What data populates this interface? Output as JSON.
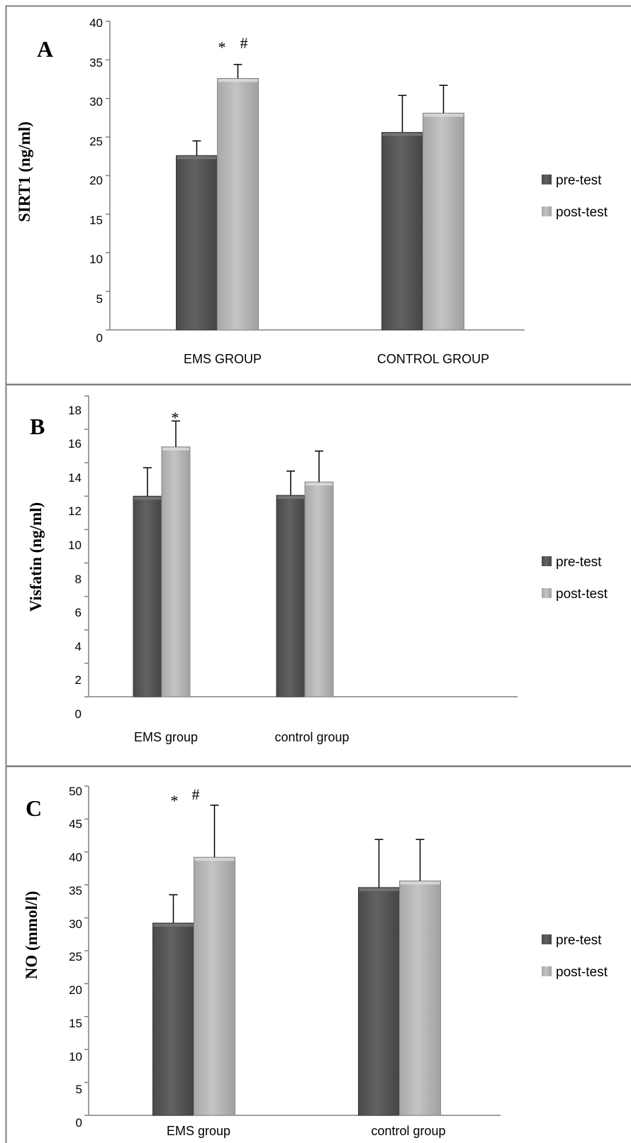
{
  "legend": {
    "series": [
      "pre-test",
      "post-test"
    ]
  },
  "colors": {
    "pre": "#5a5a5a",
    "post": "#b5b5b5",
    "axis": "#808080",
    "border": "#7f7f7f"
  },
  "chart_data": [
    {
      "type": "bar",
      "panel": "A",
      "ylabel": "SIRT1 (ng/ml)",
      "categories": [
        "EMS GROUP",
        "CONTROL GROUP"
      ],
      "ylim": [
        0,
        40
      ],
      "yticks": [
        "0",
        "5",
        "10",
        "15",
        "20",
        "25",
        "30",
        "35",
        "40"
      ],
      "series": [
        {
          "name": "pre-test",
          "values": [
            22.6,
            25.6
          ],
          "errors": [
            1.9,
            4.8
          ]
        },
        {
          "name": "post-test",
          "values": [
            32.6,
            28.1
          ],
          "errors": [
            1.8,
            3.6
          ]
        }
      ],
      "annotations": [
        "*",
        "#"
      ],
      "legend_position": "right",
      "grid": false
    },
    {
      "type": "bar",
      "panel": "B",
      "ylabel": "Visfatin (ng/ml)",
      "categories": [
        "EMS group",
        "control group"
      ],
      "ylim": [
        0,
        18
      ],
      "yticks": [
        "0",
        "2",
        "4",
        "6",
        "8",
        "10",
        "12",
        "14",
        "16",
        "18"
      ],
      "series": [
        {
          "name": "pre-test",
          "values": [
            12.0,
            12.05
          ],
          "errors": [
            1.7,
            1.45
          ]
        },
        {
          "name": "post-test",
          "values": [
            14.95,
            12.85
          ],
          "errors": [
            1.55,
            1.85
          ]
        }
      ],
      "annotations": [
        "*"
      ],
      "legend_position": "right",
      "grid": false
    },
    {
      "type": "bar",
      "panel": "C",
      "ylabel": "NO (mmol/l)",
      "categories": [
        "EMS group",
        "control group"
      ],
      "ylim": [
        0,
        50
      ],
      "yticks": [
        "0",
        "5",
        "10",
        "15",
        "20",
        "25",
        "30",
        "35",
        "40",
        "45",
        "50"
      ],
      "series": [
        {
          "name": "pre-test",
          "values": [
            29.2,
            34.6
          ],
          "errors": [
            4.3,
            7.3
          ]
        },
        {
          "name": "post-test",
          "values": [
            39.2,
            35.6
          ],
          "errors": [
            7.9,
            6.3
          ]
        }
      ],
      "annotations": [
        "*",
        "#"
      ],
      "legend_position": "right",
      "grid": false
    }
  ]
}
